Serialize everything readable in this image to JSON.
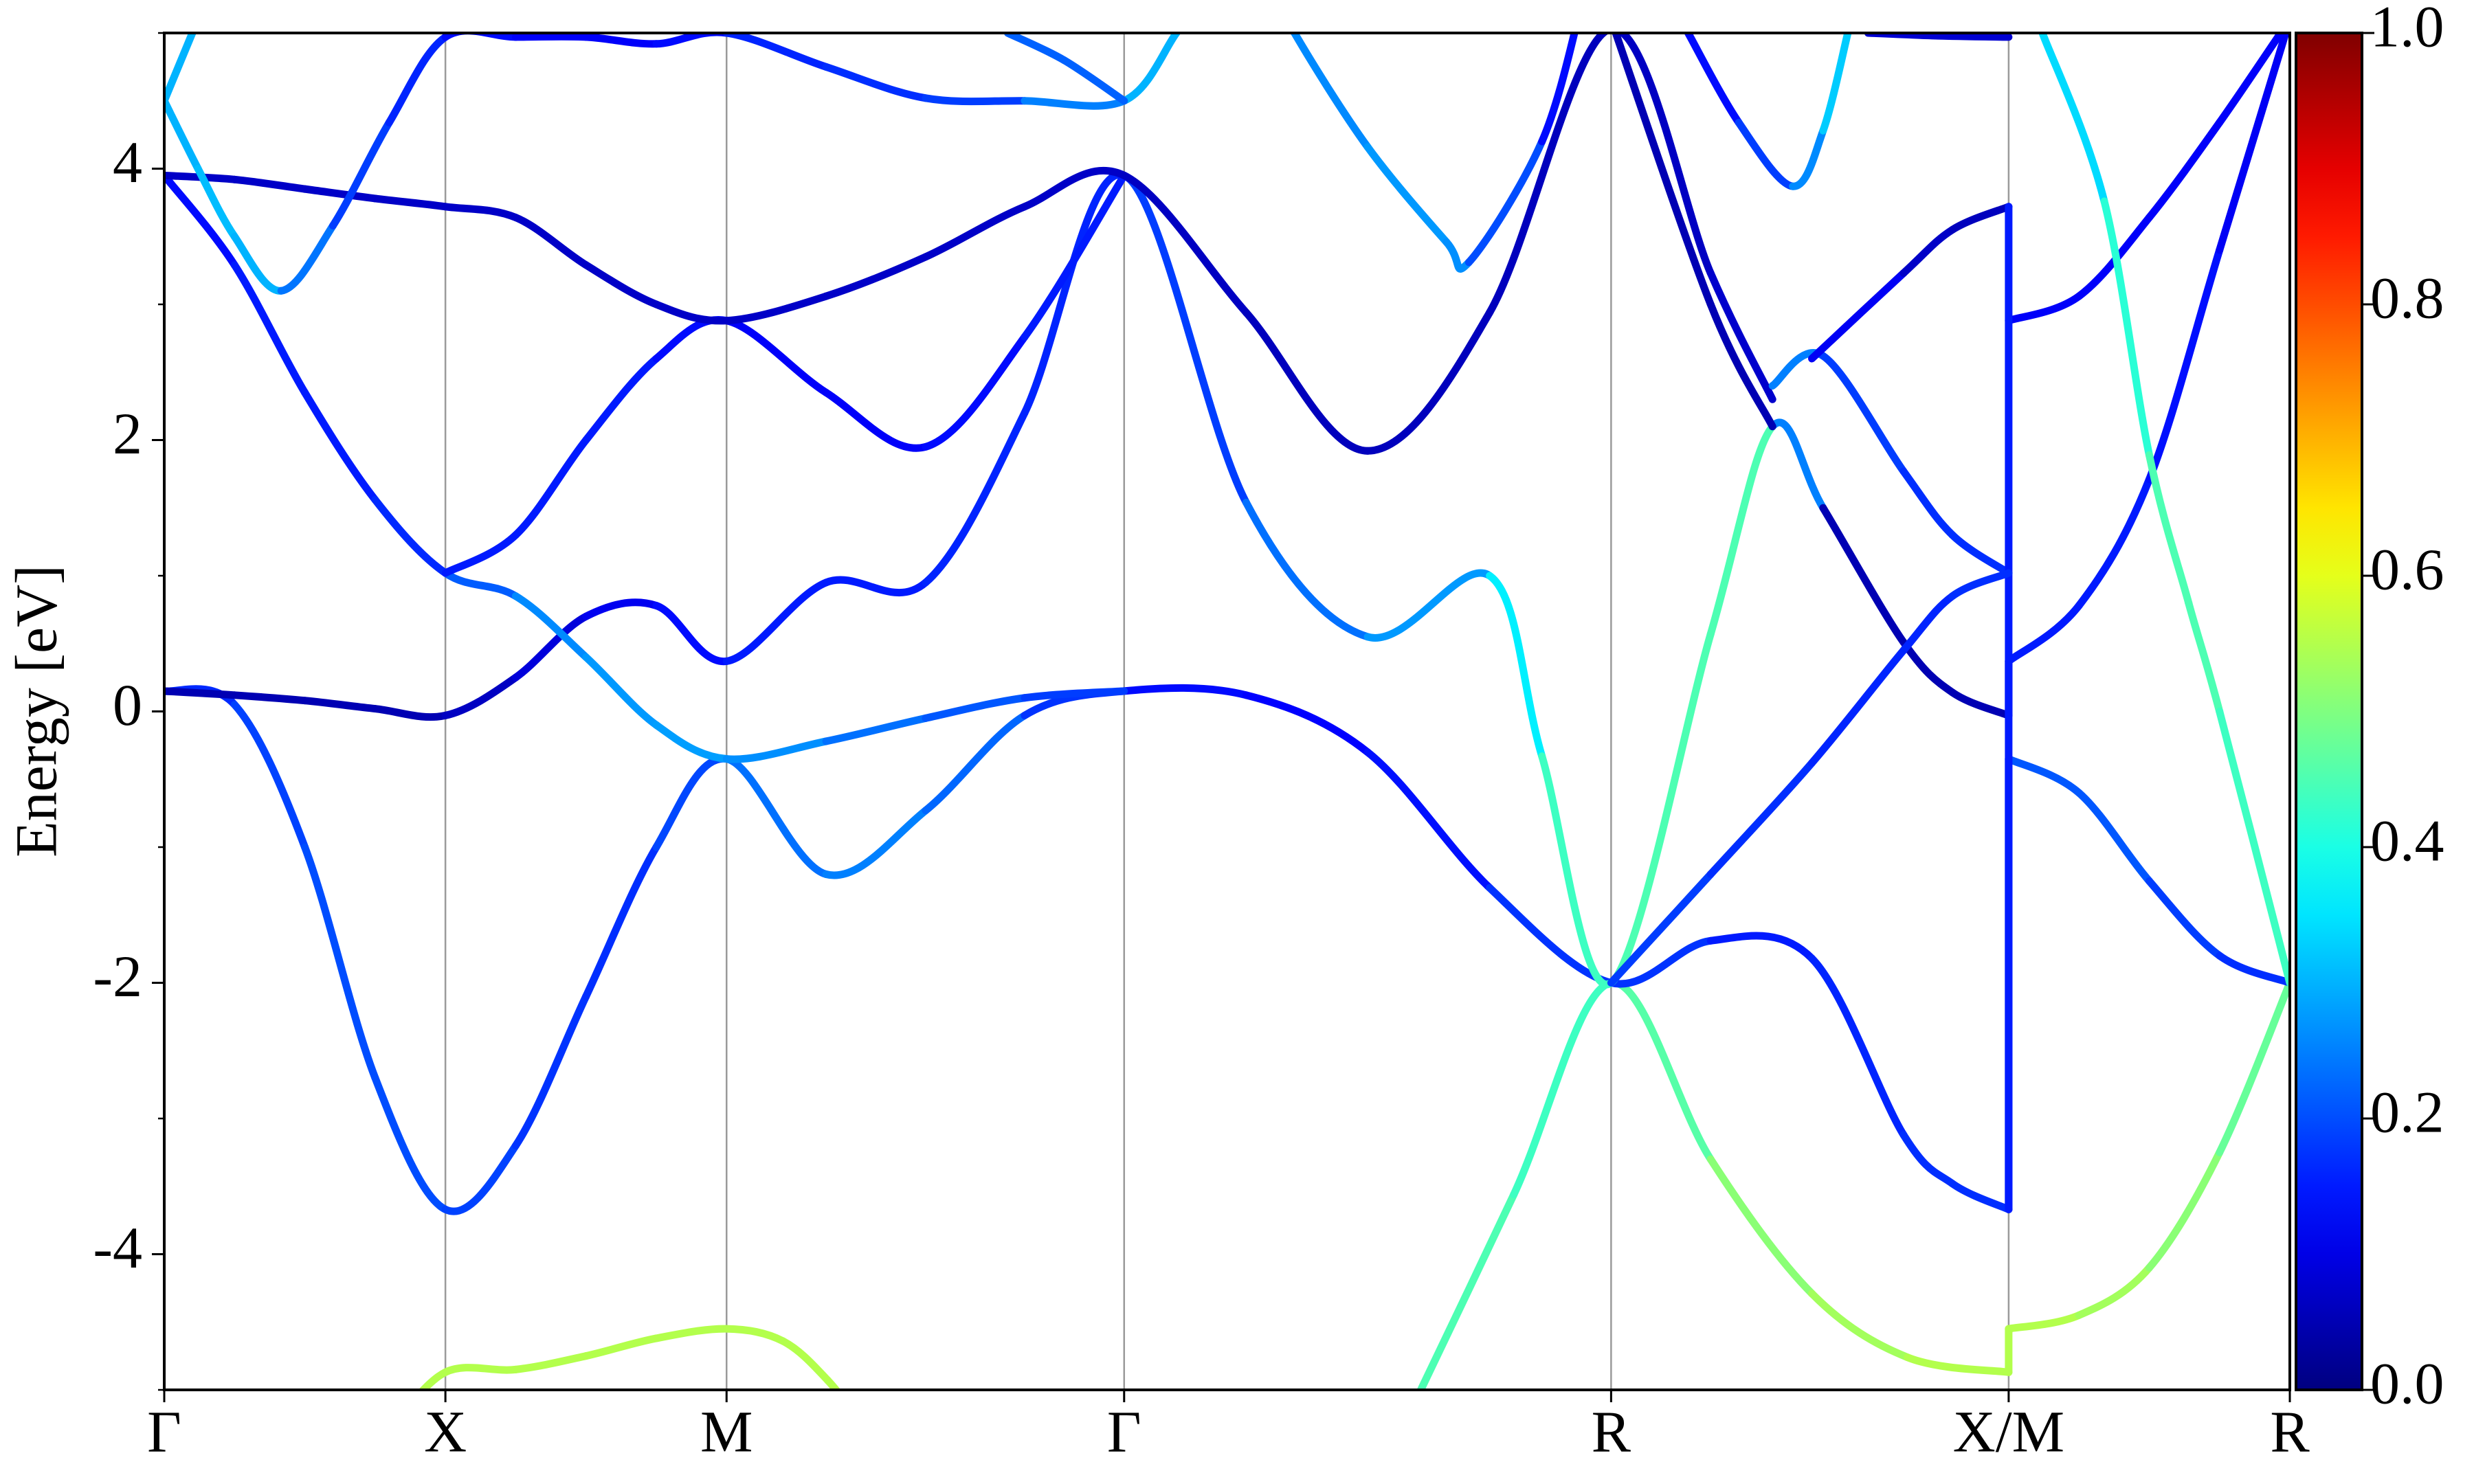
{
  "chart_data": {
    "type": "line",
    "ylabel": "Energy [eV]",
    "xlim": [
      0,
      3.78
    ],
    "ylim": [
      -5,
      5
    ],
    "xticks": [
      {
        "value": 0,
        "label": "Γ"
      },
      {
        "value": 0.5,
        "label": "X"
      },
      {
        "value": 1.0,
        "label": "M"
      },
      {
        "value": 1.707,
        "label": "Γ"
      },
      {
        "value": 2.573,
        "label": "R"
      },
      {
        "value": 3.28,
        "label": "X/M"
      },
      {
        "value": 3.78,
        "label": "R"
      }
    ],
    "yticks": [
      -4,
      -2,
      0,
      2,
      4
    ],
    "yminorticks": [
      -5,
      -3,
      -1,
      1,
      3,
      5
    ],
    "xgrid": true,
    "colormap": "jet",
    "colorbar": {
      "clim": [
        0,
        1
      ],
      "ticks": [
        {
          "value": 0,
          "label": "0.0"
        },
        {
          "value": 0.2,
          "label": "0.2"
        },
        {
          "value": 0.4,
          "label": "0.4"
        },
        {
          "value": 0.6,
          "label": "0.6"
        },
        {
          "value": 0.8,
          "label": "0.8"
        },
        {
          "value": 1,
          "label": "1.0"
        }
      ]
    },
    "series": [
      {
        "x": [
          0.4,
          0.5,
          0.625,
          0.75,
          0.875,
          1.0,
          1.1,
          1.18,
          1.25
        ],
        "values": [
          -5.3,
          -4.87,
          -4.85,
          -4.75,
          -4.62,
          -4.55,
          -4.64,
          -4.93,
          -5.3
        ],
        "weights": [
          0.55,
          0.55,
          0.55,
          0.55,
          0.55,
          0.55,
          0.55,
          0.55,
          0.55
        ]
      },
      {
        "x": [
          2.2,
          2.4,
          2.573,
          2.75,
          2.93,
          3.1,
          3.28,
          3.28,
          3.405,
          3.53,
          3.655,
          3.78
        ],
        "values": [
          -5.3,
          -3.56,
          -2.0,
          -3.3,
          -4.29,
          -4.76,
          -4.87,
          -4.55,
          -4.45,
          -4.1,
          -3.25,
          -2.0
        ],
        "weights": [
          0.45,
          0.45,
          0.42,
          0.5,
          0.52,
          0.55,
          0.55,
          0.55,
          0.55,
          0.52,
          0.5,
          0.45
        ]
      },
      {
        "x": [
          0,
          0.125,
          0.25,
          0.375,
          0.5,
          0.625,
          0.75,
          0.875,
          1.0,
          1.177,
          1.354,
          1.53,
          1.707,
          1.924,
          2.14,
          2.357,
          2.573,
          2.75,
          2.93,
          3.093,
          3.18,
          3.28,
          3.28,
          3.405,
          3.53,
          3.655,
          3.78
        ],
        "values": [
          0.15,
          0.05,
          -1.0,
          -2.7,
          -3.67,
          -3.2,
          -2.1,
          -1.0,
          -0.35,
          -1.2,
          -0.73,
          -0.03,
          0.15,
          0.12,
          -0.3,
          -1.3,
          -2.0,
          -1.69,
          -1.82,
          -3.12,
          -3.48,
          -3.67,
          -0.35,
          -0.6,
          -1.25,
          -1.8,
          -2.0
        ],
        "weights": [
          0.15,
          0.18,
          0.2,
          0.2,
          0.2,
          0.18,
          0.17,
          0.17,
          0.22,
          0.25,
          0.25,
          0.2,
          0.15,
          0.12,
          0.13,
          0.15,
          0.2,
          0.15,
          0.15,
          0.17,
          0.17,
          0.17,
          0.2,
          0.22,
          0.2,
          0.17,
          0.17
        ]
      },
      {
        "x": [
          0,
          0.125,
          0.25,
          0.375,
          0.5,
          0.625,
          0.75,
          0.875,
          1.0,
          1.177,
          1.354,
          1.53,
          1.707,
          1.924,
          2.14,
          2.357,
          2.45,
          2.573,
          2.75,
          2.86,
          2.95,
          3.093,
          3.18,
          3.28,
          3.28,
          3.405,
          3.53,
          3.655,
          3.78
        ],
        "values": [
          0.15,
          0.12,
          0.08,
          0.02,
          -0.03,
          0.25,
          0.7,
          0.78,
          0.37,
          0.95,
          0.95,
          2.2,
          3.95,
          1.54,
          0.55,
          1.0,
          -0.33,
          -2.0,
          0.57,
          2.1,
          1.5,
          0.51,
          0.14,
          -0.03,
          0.37,
          0.78,
          1.71,
          3.4,
          5.1
        ],
        "weights": [
          0.05,
          0.05,
          0.05,
          0.05,
          0.05,
          0.08,
          0.1,
          0.12,
          0.15,
          0.15,
          0.15,
          0.17,
          0.15,
          0.22,
          0.25,
          0.3,
          0.42,
          0.45,
          0.45,
          0.45,
          0.05,
          0.05,
          0.05,
          0.05,
          0.15,
          0.15,
          0.15,
          0.13,
          0.1
        ]
      },
      {
        "x": [
          0,
          0.125,
          0.25,
          0.375,
          0.5,
          0.625,
          0.75,
          0.875,
          1.0,
          1.177,
          1.354,
          1.53,
          1.707
        ],
        "values": [
          3.95,
          3.29,
          2.35,
          1.56,
          1.02,
          0.85,
          0.4,
          -0.1,
          -0.35,
          -0.22,
          -0.05,
          0.1,
          0.15
        ],
        "weights": [
          0.12,
          0.15,
          0.15,
          0.15,
          0.18,
          0.25,
          0.27,
          0.28,
          0.28,
          0.25,
          0.22,
          0.2,
          0.17
        ]
      },
      {
        "x": [
          0.5,
          0.625,
          0.75,
          0.875,
          1.0,
          1.177,
          1.354,
          1.53,
          1.707
        ],
        "values": [
          1.02,
          1.3,
          2.0,
          2.6,
          2.88,
          2.35,
          1.95,
          2.76,
          3.95
        ],
        "weights": [
          0.15,
          0.15,
          0.15,
          0.15,
          0.12,
          0.12,
          0.12,
          0.15,
          0.15
        ]
      },
      {
        "x": [
          0,
          0.125,
          0.25,
          0.375,
          0.5,
          0.625,
          0.75,
          0.875,
          1.0,
          1.177,
          1.354,
          1.53,
          1.707,
          1.924,
          2.14,
          2.357,
          2.573,
          2.75,
          2.86
        ],
        "values": [
          3.95,
          3.92,
          3.85,
          3.78,
          3.72,
          3.64,
          3.29,
          3.0,
          2.88,
          3.06,
          3.35,
          3.72,
          3.95,
          2.94,
          1.92,
          2.94,
          5.03,
          3.23,
          2.3
        ],
        "weights": [
          0.07,
          0.07,
          0.07,
          0.07,
          0.07,
          0.07,
          0.07,
          0.07,
          0.07,
          0.07,
          0.07,
          0.07,
          0.07,
          0.06,
          0.06,
          0.06,
          0.06,
          0.07,
          0.08
        ]
      },
      {
        "x": [
          2.86,
          2.95,
          3.093,
          3.18,
          3.28
        ],
        "values": [
          2.4,
          2.62,
          1.77,
          1.3,
          1.02
        ],
        "weights": [
          0.3,
          0.2,
          0.17,
          0.17,
          0.17
        ]
      },
      {
        "x": [
          3.28,
          3.405,
          3.53,
          3.655,
          3.78
        ],
        "values": [
          2.88,
          3.06,
          3.64,
          4.34,
          5.1
        ],
        "weights": [
          0.12,
          0.12,
          0.12,
          0.12,
          0.12
        ]
      },
      {
        "x": [
          2.93,
          3.093,
          3.18,
          3.28
        ],
        "values": [
          2.6,
          3.23,
          3.55,
          3.72
        ],
        "weights": [
          0.15,
          0.08,
          0.06,
          0.06
        ]
      },
      {
        "x": [
          3.28,
          3.28
        ],
        "values": [
          3.72,
          -3.67
        ],
        "weights": [
          0.15,
          0.15
        ]
      },
      {
        "x": [
          2.573,
          2.75,
          2.86
        ],
        "values": [
          5.1,
          3.0,
          2.1
        ],
        "weights": [
          0.05,
          0.05,
          0.05
        ]
      },
      {
        "x": [
          2.573,
          2.75,
          2.93,
          3.093,
          3.18,
          3.28
        ],
        "values": [
          -2.0,
          -1.2,
          -0.38,
          0.45,
          0.85,
          1.02
        ],
        "weights": [
          0.2,
          0.17,
          0.17,
          0.15,
          0.17,
          0.17
        ]
      },
      {
        "x": [
          0,
          0.06,
          0.125,
          0.208,
          0.3,
          0.4,
          0.5,
          0.625,
          0.75,
          0.875,
          1.0,
          1.177,
          1.354,
          1.53,
          1.707,
          1.8,
          1.85
        ],
        "values": [
          4.5,
          4.0,
          3.5,
          3.1,
          3.58,
          4.34,
          4.97,
          4.97,
          4.97,
          4.92,
          5.0,
          4.75,
          4.52,
          4.5,
          4.5,
          5.0,
          5.3
        ],
        "weights": [
          0.3,
          0.3,
          0.32,
          0.28,
          0.2,
          0.17,
          0.15,
          0.12,
          0.12,
          0.12,
          0.15,
          0.17,
          0.17,
          0.2,
          0.3,
          0.3,
          0.3
        ]
      },
      {
        "x": [
          0,
          0.05,
          0.1
        ],
        "values": [
          4.5,
          5.0,
          5.5
        ],
        "weights": [
          0.3,
          0.3,
          0.3
        ]
      },
      {
        "x": [
          1.98,
          2.01,
          2.14,
          2.28,
          2.32,
          2.45,
          2.52
        ],
        "values": [
          5.3,
          5.0,
          4.16,
          3.46,
          3.31,
          4.2,
          5.2
        ],
        "weights": [
          0.25,
          0.25,
          0.27,
          0.28,
          0.25,
          0.15,
          0.12
        ]
      },
      {
        "x": [
          2.71,
          2.8,
          2.896,
          2.95,
          2.994
        ],
        "values": [
          5.0,
          4.34,
          3.87,
          4.28,
          5.0
        ],
        "weights": [
          0.12,
          0.15,
          0.22,
          0.3,
          0.35
        ]
      },
      {
        "x": [
          3.34,
          3.45,
          3.53,
          3.6,
          3.655,
          3.78
        ],
        "values": [
          5.0,
          3.76,
          1.89,
          0.8,
          0.0,
          -2.0
        ],
        "weights": [
          0.3,
          0.38,
          0.45,
          0.45,
          0.45,
          0.42
        ]
      },
      {
        "x": [
          1.5,
          1.6,
          1.707
        ],
        "values": [
          5.0,
          4.8,
          4.5
        ],
        "weights": [
          0.22,
          0.22,
          0.22
        ]
      },
      {
        "x": [
          3.03,
          3.15,
          3.28
        ],
        "values": [
          5.0,
          4.98,
          4.97
        ],
        "weights": [
          0.08,
          0.08,
          0.08
        ]
      }
    ]
  }
}
